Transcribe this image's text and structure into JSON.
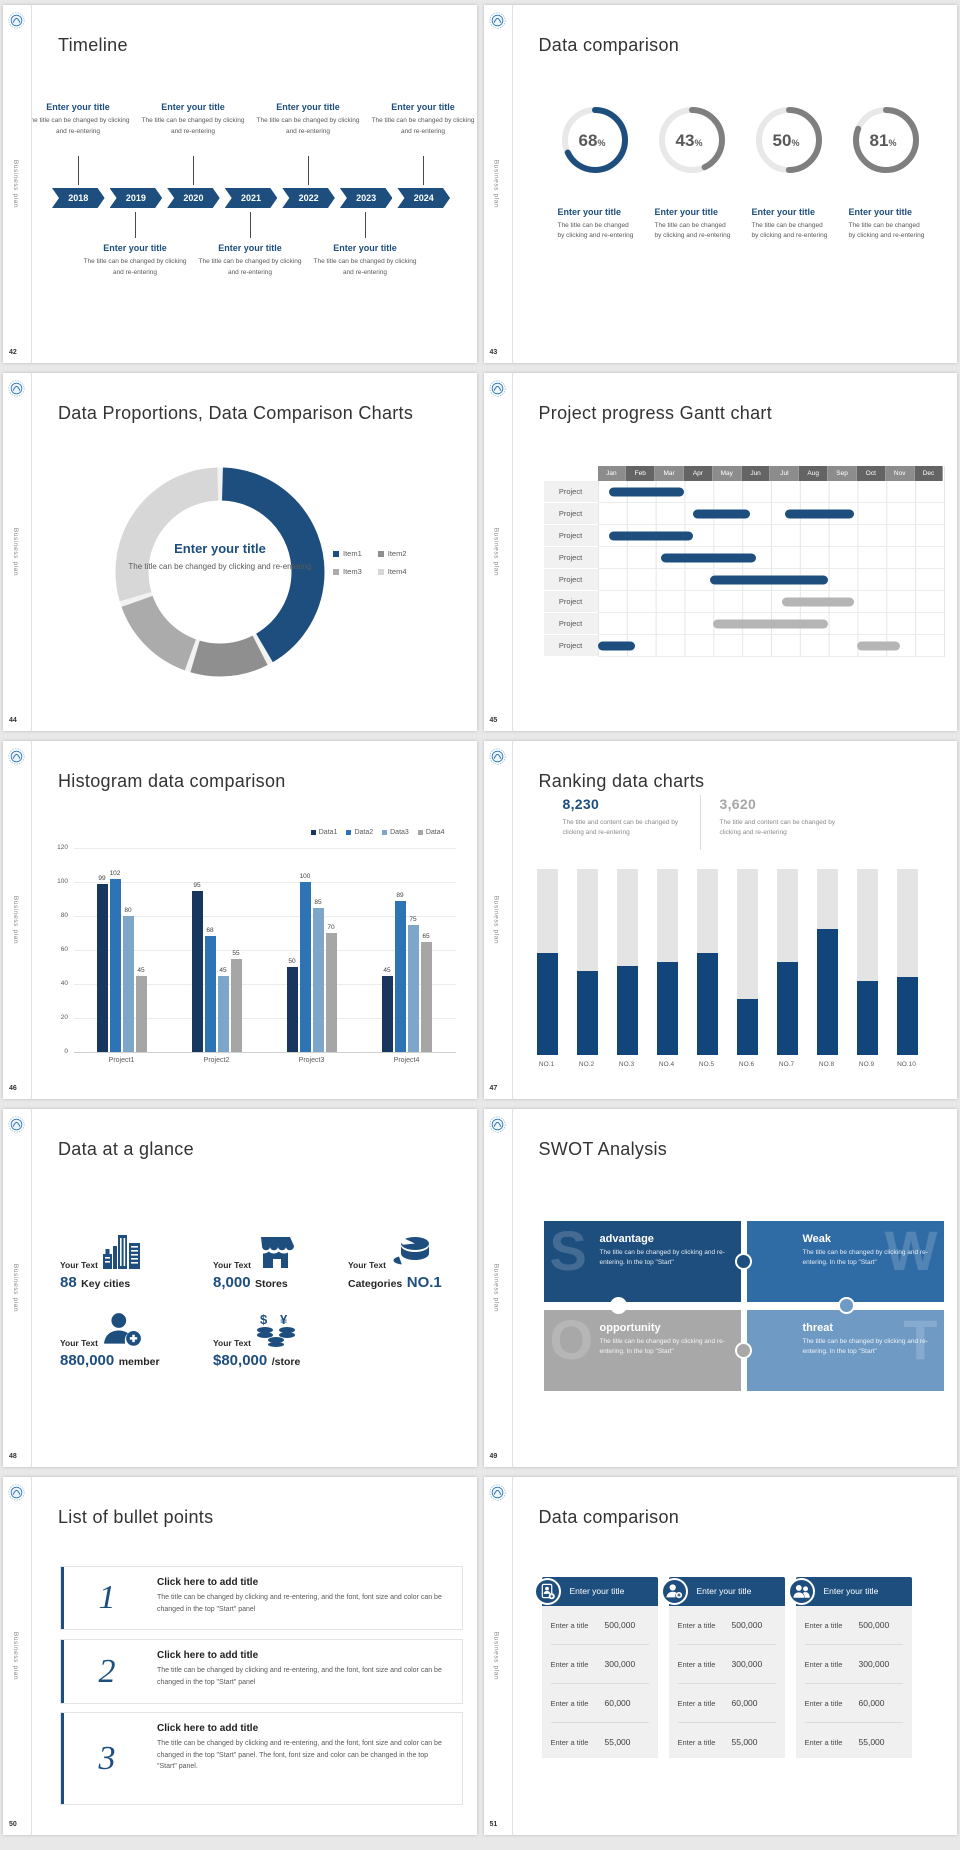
{
  "page": {
    "background": "#e8e8e8"
  },
  "common": {
    "brand_label": "Business plan",
    "enter_title": "Enter your title",
    "caption": "The title can be changed by clicking and re-entering"
  },
  "slides": {
    "s42": {
      "number": "42",
      "title": "Timeline",
      "years": [
        "2018",
        "2019",
        "2020",
        "2021",
        "2022",
        "2023",
        "2024"
      ]
    },
    "s43": {
      "number": "43",
      "title": "Data comparison"
    },
    "s44": {
      "number": "44",
      "title": "Data Proportions, Data Comparison Charts",
      "center_title": "Enter your title",
      "center_caption": "The title can be changed by clicking and re-entering",
      "legend": [
        "Item1",
        "Item2",
        "Item3",
        "Item4"
      ]
    },
    "s45": {
      "number": "45",
      "title": "Project progress Gantt chart"
    },
    "s46": {
      "number": "46",
      "title": "Histogram data comparison"
    },
    "s47": {
      "number": "47",
      "title": "Ranking data charts",
      "stats": [
        {
          "value": "8,230",
          "caption": "The title and content can be changed by clicking and re-entering",
          "color": "#1d4e7e"
        },
        {
          "value": "3,620",
          "caption": "The title and content can be changed by clicking and re-entering",
          "color": "#a6a6a6"
        }
      ]
    },
    "s48": {
      "number": "48",
      "title": "Data at a glance",
      "items": [
        {
          "label": "Your Text",
          "icon": "building-icon",
          "value_big": "88",
          "value_small": "Key cities"
        },
        {
          "label": "Your Text",
          "icon": "store-icon",
          "value_big": "8,000",
          "value_small": "Stores"
        },
        {
          "label": "Your Text",
          "icon": "pie-icon",
          "value_big": "NO.1",
          "value_small": "Categories"
        },
        {
          "label": "Your Text",
          "icon": "member-icon",
          "value_big": "880,000",
          "value_small": "member"
        },
        {
          "label": "Your Text",
          "icon": "coins-icon",
          "value_big": "$80,000",
          "value_small": "/store"
        }
      ]
    },
    "s49": {
      "number": "49",
      "title": "SWOT Analysis",
      "quadrants": [
        {
          "letter": "S",
          "heading": "advantage",
          "body": "The title can be changed by clicking and re-entering. In the top \"Start\"",
          "color": "#1d4e7e"
        },
        {
          "letter": "W",
          "heading": "Weak",
          "body": "The title can be changed by clicking and re-entering. In the top \"Start\"",
          "color": "#2f6ba5"
        },
        {
          "letter": "O",
          "heading": "opportunity",
          "body": "The title can be changed by clicking and re-entering. In the top \"Start\"",
          "color": "#a8a8a8"
        },
        {
          "letter": "T",
          "heading": "threat",
          "body": "The title can be changed by clicking and re-entering. In the top \"Start\"",
          "color": "#6f9ac4"
        }
      ]
    },
    "s50": {
      "number": "50",
      "title": "List of bullet points",
      "items": [
        {
          "num": "1",
          "heading": "Click here to add title",
          "body": "The title can be changed by clicking and re-entering, and the font, font size and color can be changed in the top \"Start\" panel"
        },
        {
          "num": "2",
          "heading": "Click here to add title",
          "body": "The title can be changed by clicking and re-entering, and the font, font size and color can be changed in the top \"Start\" panel"
        },
        {
          "num": "3",
          "heading": "Click here to add title",
          "body": "The title can be changed by clicking and re-entering, and the font, font size and color can be changed in the top \"Start\" panel. The font, font size and color can be changed in the top \"Start\" panel."
        }
      ]
    },
    "s51": {
      "number": "51",
      "title": "Data comparison",
      "cards": [
        {
          "icon": "idcard-icon",
          "header": "Enter your title"
        },
        {
          "icon": "member-icon",
          "header": "Enter your title"
        },
        {
          "icon": "people-icon",
          "header": "Enter your title"
        }
      ],
      "rows": [
        {
          "label": "Enter a title",
          "value": "500,000"
        },
        {
          "label": "Enter a title",
          "value": "300,000"
        },
        {
          "label": "Enter a title",
          "value": "60,000"
        },
        {
          "label": "Enter a title",
          "value": "55,000"
        }
      ]
    }
  },
  "chart_data": [
    {
      "id": "rings-43",
      "type": "donut",
      "slide": "43",
      "values": [
        68,
        43,
        50,
        81
      ],
      "unit": "%",
      "active_color": "#1d4e7e",
      "inactive_color": "#7f7f7f",
      "track_color": "#e8e8e8",
      "number_color": "#595959"
    },
    {
      "id": "donut-44",
      "type": "pie",
      "slide": "44",
      "labels": [
        "Item1",
        "Item2",
        "Item3",
        "Item4"
      ],
      "values": [
        42,
        13,
        15,
        30
      ],
      "colors": [
        "#1d4e7e",
        "#8f8f8f",
        "#ababab",
        "#d7d7d7"
      ],
      "center_title": "Enter your title"
    },
    {
      "id": "gantt-45",
      "type": "gantt",
      "slide": "45",
      "months": [
        "Jan",
        "Feb",
        "Mar",
        "Apr",
        "May",
        "Jun",
        "Jul",
        "Aug",
        "Sep",
        "Oct",
        "Nov",
        "Dec"
      ],
      "row_label": "Project",
      "header_colors": [
        "#8c8c8c",
        "#646464"
      ],
      "bar_colors": {
        "blue": "#1d4e7e",
        "gray": "#b5b5b5"
      },
      "rows": [
        [
          {
            "start": 0.4,
            "end": 3.0,
            "color": "blue"
          }
        ],
        [
          {
            "start": 3.3,
            "end": 5.3,
            "color": "blue"
          },
          {
            "start": 6.5,
            "end": 8.9,
            "color": "blue"
          }
        ],
        [
          {
            "start": 0.4,
            "end": 3.3,
            "color": "blue"
          }
        ],
        [
          {
            "start": 2.2,
            "end": 5.5,
            "color": "blue"
          }
        ],
        [
          {
            "start": 3.9,
            "end": 8.0,
            "color": "blue"
          }
        ],
        [
          {
            "start": 6.4,
            "end": 8.9,
            "color": "gray"
          }
        ],
        [
          {
            "start": 4.0,
            "end": 8.0,
            "color": "gray"
          }
        ],
        [
          {
            "start": 0.0,
            "end": 1.3,
            "color": "blue"
          },
          {
            "start": 9.0,
            "end": 10.5,
            "color": "gray"
          }
        ]
      ]
    },
    {
      "id": "histogram-46",
      "type": "bar",
      "slide": "46",
      "categories": [
        "Project1",
        "Project2",
        "Project3",
        "Project4"
      ],
      "series": [
        {
          "name": "Data1",
          "color": "#17375e",
          "values": [
            99,
            95,
            50,
            45
          ]
        },
        {
          "name": "Data2",
          "color": "#2e74b5",
          "values": [
            102,
            68,
            100,
            89
          ]
        },
        {
          "name": "Data3",
          "color": "#7ea6cb",
          "values": [
            80,
            45,
            85,
            75
          ]
        },
        {
          "name": "Data4",
          "color": "#a6a6a6",
          "values": [
            45,
            55,
            70,
            65
          ]
        }
      ],
      "ylim": [
        0,
        120
      ],
      "ytick_step": 20,
      "grid": true,
      "legend_position": "top-right"
    },
    {
      "id": "ranking-47",
      "type": "bar",
      "slide": "47",
      "categories": [
        "NO.1",
        "NO.2",
        "NO.3",
        "NO.4",
        "NO.5",
        "NO.6",
        "NO.7",
        "NO.8",
        "NO.9",
        "NO.10"
      ],
      "values_pct": [
        55,
        45,
        48,
        50,
        55,
        30,
        50,
        68,
        40,
        42
      ],
      "bar_color": "#12467b",
      "track_color": "#e4e4e4"
    }
  ]
}
